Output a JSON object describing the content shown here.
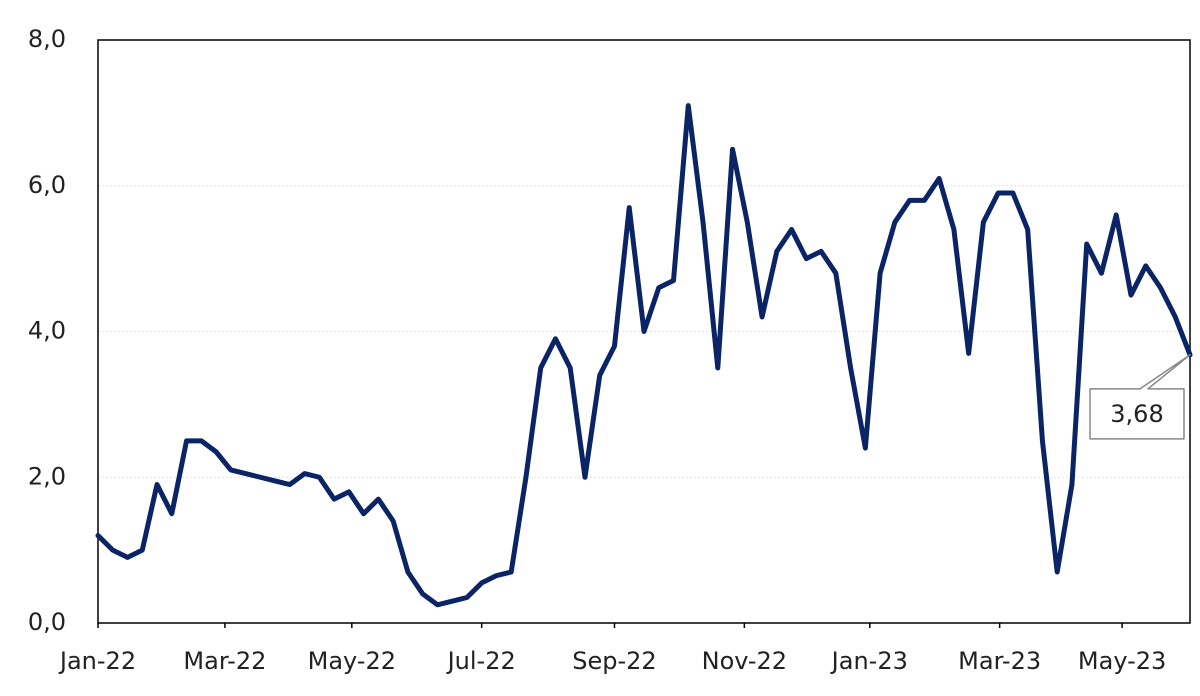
{
  "chart_data": {
    "type": "line",
    "annotation": "3,68",
    "color": "#0a2466",
    "grid": true,
    "values": [
      1.2,
      1.0,
      0.9,
      1.0,
      1.9,
      1.5,
      2.5,
      2.5,
      2.35,
      2.1,
      2.05,
      2.0,
      1.95,
      1.9,
      2.05,
      2.0,
      1.7,
      1.8,
      1.5,
      1.7,
      1.4,
      0.7,
      0.4,
      0.25,
      0.3,
      0.35,
      0.55,
      0.65,
      0.7,
      2.0,
      3.5,
      3.9,
      3.5,
      2.0,
      3.4,
      3.8,
      5.7,
      4.0,
      4.6,
      4.7,
      7.1,
      5.5,
      3.5,
      6.5,
      5.5,
      4.2,
      5.1,
      5.4,
      5.0,
      5.1,
      4.8,
      3.5,
      2.4,
      4.8,
      5.5,
      5.8,
      5.8,
      6.1,
      5.4,
      3.7,
      5.5,
      5.9,
      5.9,
      5.4,
      2.5,
      0.7,
      1.9,
      5.2,
      4.8,
      5.6,
      4.5,
      4.9,
      4.6,
      4.2,
      3.68
    ],
    "xlim": [
      0,
      74
    ],
    "xticks": [
      {
        "value": 0,
        "label": "Jan-22"
      },
      {
        "value": 8.6,
        "label": "Mar-22"
      },
      {
        "value": 17.2,
        "label": "May-22"
      },
      {
        "value": 26,
        "label": "Jul-22"
      },
      {
        "value": 35,
        "label": "Sep-22"
      },
      {
        "value": 43.8,
        "label": "Nov-22"
      },
      {
        "value": 52.3,
        "label": "Jan-23"
      },
      {
        "value": 61.1,
        "label": "Mar-23"
      },
      {
        "value": 69.4,
        "label": "May-23"
      }
    ],
    "ylim": [
      0,
      8
    ],
    "yticks": [
      {
        "value": 0,
        "label": "0,0"
      },
      {
        "value": 2,
        "label": "2,0"
      },
      {
        "value": 4,
        "label": "4,0"
      },
      {
        "value": 6,
        "label": "6,0"
      },
      {
        "value": 8,
        "label": "8,0"
      }
    ]
  }
}
